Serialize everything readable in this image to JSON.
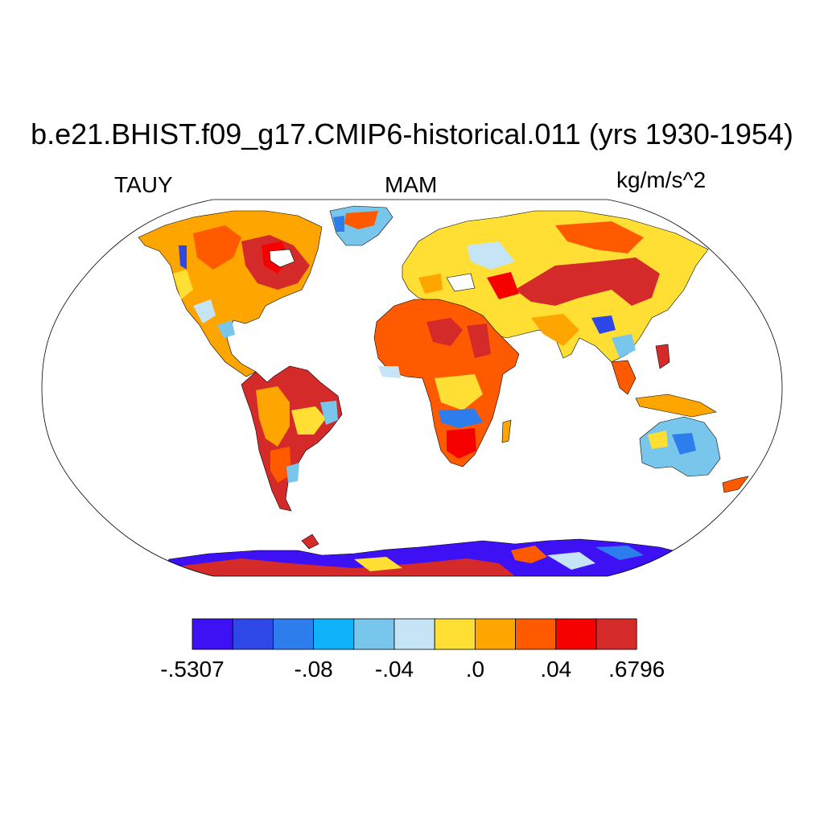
{
  "header": {
    "title": "b.e21.BHIST.f09_g17.CMIP6-historical.011 (yrs 1930-1954)",
    "variable": "TAUY",
    "season": "MAM",
    "units": "kg/m/s^2"
  },
  "map": {
    "projection": "Robinson",
    "field": "TAUY",
    "ocean_color": "#ffffff",
    "outline_color": "#000000"
  },
  "colorbar": {
    "colors": [
      "#3e11f5",
      "#2e48e8",
      "#2d7ded",
      "#0fb2f8",
      "#78c6ec",
      "#c5e5f6",
      "#ffdf33",
      "#ffa500",
      "#ff5a00",
      "#f70000",
      "#d42a2a"
    ],
    "labels": [
      {
        "text": "-.5307",
        "boundary": 0
      },
      {
        "text": "-.08",
        "boundary": 3
      },
      {
        "text": "-.04",
        "boundary": 5
      },
      {
        "text": ".0",
        "boundary": 7
      },
      {
        "text": ".04",
        "boundary": 9
      },
      {
        "text": ".6796",
        "boundary": 11
      }
    ]
  }
}
